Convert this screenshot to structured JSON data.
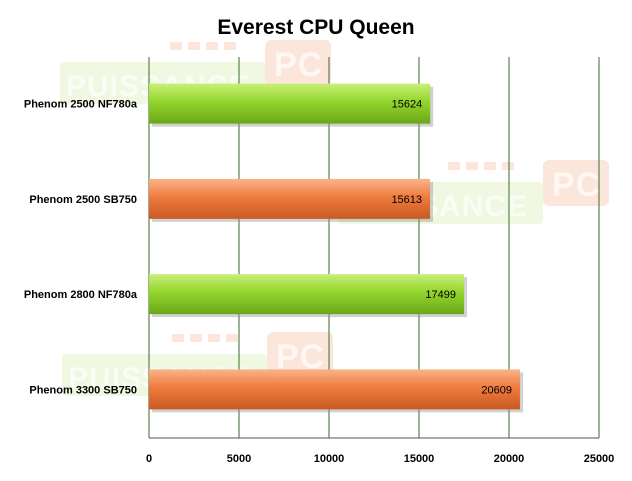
{
  "chart_data": {
    "type": "bar",
    "orientation": "horizontal",
    "title": "Everest CPU Queen",
    "xlabel": "",
    "ylabel": "",
    "categories": [
      "Phenom 2500 NF780a",
      "Phenom 2500 SB750",
      "Phenom 2800 NF780a",
      "Phenom 3300 SB750"
    ],
    "values": [
      15624,
      15613,
      17499,
      20609
    ],
    "bar_colors": [
      "#8fd22a",
      "#ef7b3f",
      "#8fd22a",
      "#ef7b3f"
    ],
    "xlim": [
      0,
      25000
    ],
    "xticks": [
      0,
      5000,
      10000,
      15000,
      20000,
      25000
    ],
    "grid": true,
    "legend": "none",
    "data_labels": true
  },
  "watermark": {
    "text": "PUISSANCE",
    "badge": "PC"
  },
  "colors": {
    "green": "#8fd22a",
    "orange": "#ef7b3f",
    "gridline": "#3a6a2a"
  }
}
